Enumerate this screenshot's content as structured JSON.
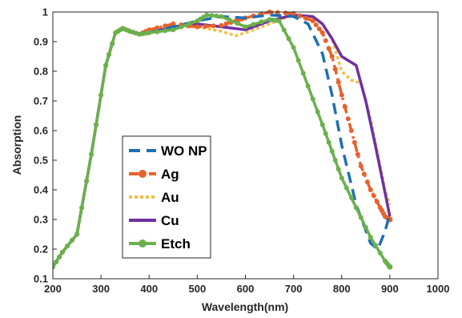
{
  "chart_data": {
    "type": "line",
    "xlabel": "Wavelength(nm)",
    "ylabel": "Absorption",
    "xlim": [
      200,
      1000
    ],
    "ylim": [
      0.1,
      1
    ],
    "xticks": [
      "200",
      "300",
      "400",
      "500",
      "600",
      "700",
      "800",
      "900",
      "1000"
    ],
    "yticks": [
      "0.1",
      "0.2",
      "0.3",
      "0.4",
      "0.5",
      "0.6",
      "0.7",
      "0.8",
      "0.9",
      "1"
    ],
    "grid": false,
    "legend_position": "lower-left",
    "series": [
      {
        "name": "WO NP",
        "color": "#1f6fb4",
        "style": "dashed",
        "x": [
          200,
          220,
          250,
          280,
          310,
          330,
          345,
          360,
          380,
          400,
          450,
          500,
          550,
          600,
          650,
          700,
          730,
          760,
          780,
          800,
          830,
          860,
          875,
          890,
          900
        ],
        "y": [
          0.14,
          0.19,
          0.25,
          0.52,
          0.82,
          0.93,
          0.945,
          0.935,
          0.925,
          0.93,
          0.95,
          0.97,
          0.985,
          0.98,
          0.99,
          0.985,
          0.96,
          0.86,
          0.72,
          0.55,
          0.35,
          0.22,
          0.2,
          0.26,
          0.32
        ]
      },
      {
        "name": "Ag",
        "color": "#e8612c",
        "style": "dash-dot",
        "marker": "circle",
        "x": [
          200,
          220,
          250,
          280,
          310,
          330,
          345,
          360,
          380,
          400,
          450,
          500,
          550,
          580,
          600,
          650,
          700,
          740,
          760,
          780,
          800,
          820,
          840,
          860,
          880,
          890,
          900
        ],
        "y": [
          0.14,
          0.19,
          0.25,
          0.52,
          0.82,
          0.93,
          0.945,
          0.935,
          0.925,
          0.94,
          0.96,
          0.95,
          0.955,
          0.97,
          0.98,
          1.0,
          0.995,
          0.97,
          0.93,
          0.85,
          0.72,
          0.6,
          0.48,
          0.4,
          0.34,
          0.31,
          0.3
        ]
      },
      {
        "name": "Au",
        "color": "#f0c048",
        "style": "dotted",
        "x": [
          200,
          220,
          250,
          280,
          310,
          330,
          345,
          360,
          380,
          400,
          450,
          500,
          550,
          580,
          600,
          650,
          700,
          740,
          760,
          780,
          800,
          820,
          840,
          860,
          880,
          890,
          900
        ],
        "y": [
          0.14,
          0.19,
          0.25,
          0.52,
          0.82,
          0.93,
          0.945,
          0.935,
          0.925,
          0.94,
          0.95,
          0.95,
          0.935,
          0.92,
          0.93,
          0.96,
          0.99,
          0.98,
          0.96,
          0.91,
          0.8,
          0.77,
          0.76,
          0.64,
          0.48,
          0.4,
          0.35
        ]
      },
      {
        "name": "Cu",
        "color": "#7030a0",
        "style": "solid",
        "x": [
          200,
          220,
          250,
          280,
          310,
          330,
          345,
          360,
          380,
          400,
          450,
          500,
          550,
          600,
          650,
          700,
          740,
          760,
          780,
          800,
          830,
          850,
          870,
          890,
          900
        ],
        "y": [
          0.14,
          0.19,
          0.25,
          0.52,
          0.82,
          0.93,
          0.945,
          0.935,
          0.925,
          0.93,
          0.95,
          0.96,
          0.95,
          0.94,
          0.97,
          0.99,
          0.985,
          0.96,
          0.91,
          0.85,
          0.82,
          0.7,
          0.55,
          0.39,
          0.31
        ]
      },
      {
        "name": "Etch",
        "color": "#6ab04c",
        "style": "solid",
        "marker": "circle",
        "x": [
          200,
          220,
          250,
          280,
          310,
          330,
          345,
          360,
          380,
          400,
          450,
          500,
          520,
          550,
          600,
          650,
          670,
          700,
          730,
          760,
          780,
          800,
          830,
          860,
          890,
          900
        ],
        "y": [
          0.14,
          0.19,
          0.25,
          0.52,
          0.82,
          0.93,
          0.945,
          0.935,
          0.925,
          0.93,
          0.94,
          0.97,
          0.99,
          0.985,
          0.95,
          0.975,
          0.97,
          0.88,
          0.75,
          0.62,
          0.53,
          0.44,
          0.34,
          0.24,
          0.16,
          0.14
        ]
      }
    ]
  }
}
